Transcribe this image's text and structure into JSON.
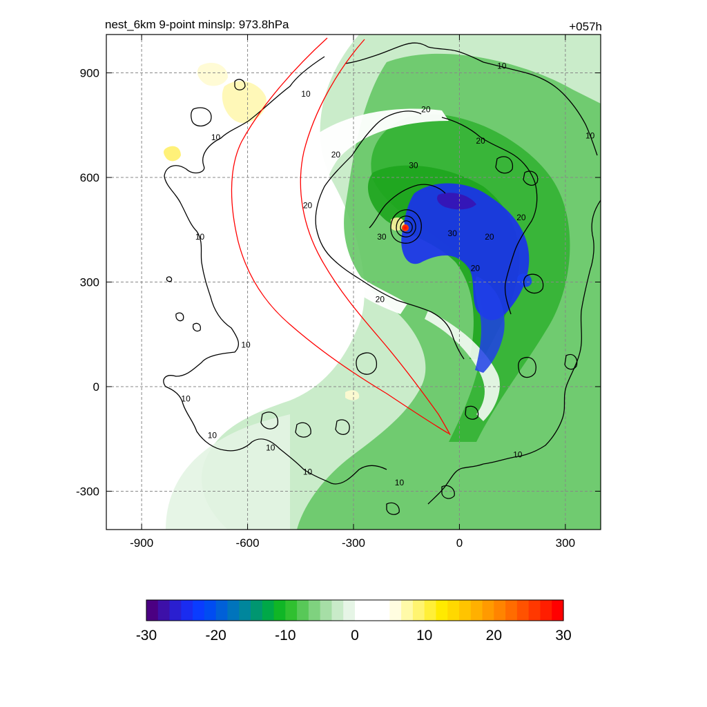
{
  "chart_data": {
    "type": "heatmap",
    "title_left": "nest_6km  9-point minslp: 973.8hPa",
    "title_right": "+057h",
    "x": {
      "min": -1000,
      "max": 400,
      "ticks": [
        -900,
        -600,
        -300,
        0,
        300
      ],
      "tick_labels": [
        "-900",
        "-600",
        "-300",
        "0",
        "300"
      ]
    },
    "y": {
      "min": -410,
      "max": 1010,
      "ticks": [
        -300,
        0,
        300,
        600,
        900
      ],
      "tick_labels": [
        "-300",
        "0",
        "300",
        "600",
        "900"
      ]
    },
    "grid": true,
    "storm_center": {
      "x": -150,
      "y": 460
    },
    "contour_labels": [
      {
        "text": "10",
        "x": -435,
        "y": 840
      },
      {
        "text": "10",
        "x": -690,
        "y": 715
      },
      {
        "text": "10",
        "x": -735,
        "y": 430
      },
      {
        "text": "10",
        "x": -605,
        "y": 120
      },
      {
        "text": "10",
        "x": -775,
        "y": -35
      },
      {
        "text": "10",
        "x": -700,
        "y": -140
      },
      {
        "text": "10",
        "x": -535,
        "y": -175
      },
      {
        "text": "10",
        "x": -430,
        "y": -245
      },
      {
        "text": "10",
        "x": -170,
        "y": -275
      },
      {
        "text": "10",
        "x": 120,
        "y": 920
      },
      {
        "text": "10",
        "x": 370,
        "y": 720
      },
      {
        "text": "10",
        "x": 165,
        "y": -195
      },
      {
        "text": "20",
        "x": -95,
        "y": 795
      },
      {
        "text": "20",
        "x": 60,
        "y": 705
      },
      {
        "text": "20",
        "x": -350,
        "y": 665
      },
      {
        "text": "20",
        "x": -430,
        "y": 520
      },
      {
        "text": "20",
        "x": 175,
        "y": 485
      },
      {
        "text": "20",
        "x": 85,
        "y": 430
      },
      {
        "text": "20",
        "x": 45,
        "y": 340
      },
      {
        "text": "20",
        "x": -225,
        "y": 250
      },
      {
        "text": "30",
        "x": -130,
        "y": 635
      },
      {
        "text": "30",
        "x": -220,
        "y": 430
      },
      {
        "text": "30",
        "x": -20,
        "y": 440
      }
    ],
    "colorbar": {
      "min": -30,
      "max": 30,
      "tick_values": [
        -30,
        -20,
        -10,
        0,
        10,
        20,
        30
      ],
      "tick_labels": [
        "-30",
        "-20",
        "-10",
        "0",
        "10",
        "20",
        "30"
      ],
      "colors": [
        "#4b0082",
        "#3d10a8",
        "#2a1fd0",
        "#1a2cf0",
        "#0a3cff",
        "#004cf2",
        "#0060d8",
        "#0074bc",
        "#00869c",
        "#009670",
        "#00a848",
        "#10b626",
        "#30c030",
        "#58c858",
        "#7fd27f",
        "#a6dea6",
        "#c9ebc9",
        "#e6f5e6",
        "#ffffff",
        "#ffffff",
        "#ffffff",
        "#fffde0",
        "#fffaa8",
        "#fff470",
        "#ffef38",
        "#ffea00",
        "#ffd800",
        "#ffc400",
        "#ffb000",
        "#ff9a00",
        "#ff8400",
        "#ff6c00",
        "#ff5200",
        "#ff3800",
        "#ff1e00",
        "#ff0000"
      ]
    }
  }
}
